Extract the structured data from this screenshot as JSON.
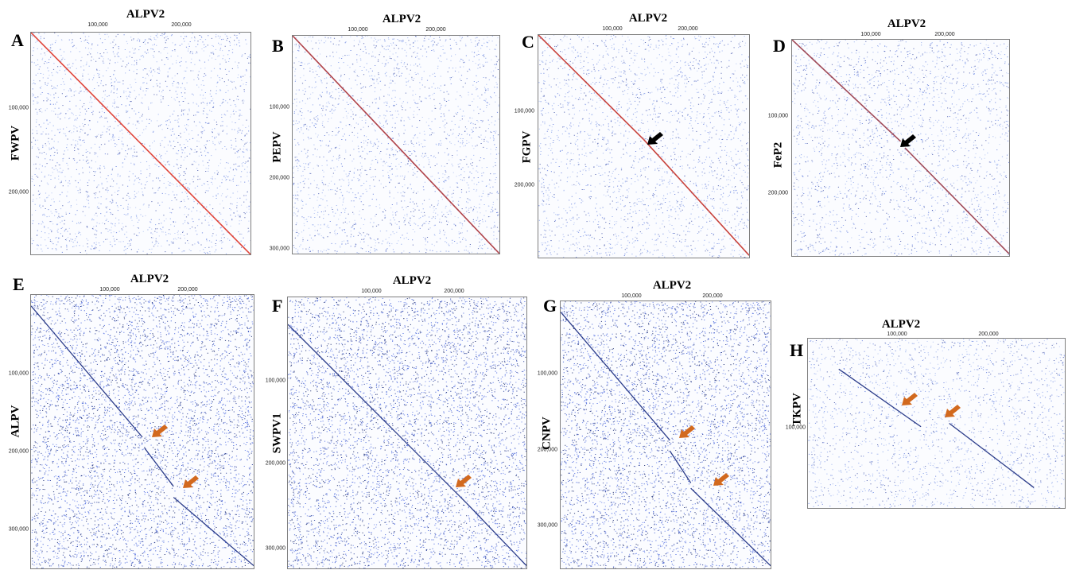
{
  "chart_data": [
    {
      "panel": "A",
      "type": "scatter",
      "title": "ALPV2",
      "xlabel": "ALPV2",
      "ylabel": "FWPV",
      "x_ticks": [
        "100,000",
        "200,000"
      ],
      "y_ticks": [
        "100,000",
        "200,000"
      ],
      "diagonal_color": "#e0453a",
      "noise_density": "sparse",
      "arrows": []
    },
    {
      "panel": "B",
      "type": "scatter",
      "title": "ALPV2",
      "xlabel": "ALPV2",
      "ylabel": "PEPV",
      "x_ticks": [
        "100,000",
        "200,000"
      ],
      "y_ticks": [
        "100,000",
        "200,000",
        "300,000"
      ],
      "diagonal_color": "#b0434a",
      "noise_density": "sparse",
      "arrows": []
    },
    {
      "panel": "C",
      "type": "scatter",
      "title": "ALPV2",
      "xlabel": "ALPV2",
      "ylabel": "FGPV",
      "x_ticks": [
        "100,000",
        "200,000"
      ],
      "y_ticks": [
        "100,000",
        "200,000"
      ],
      "diagonal_color": "#c8423c",
      "noise_density": "sparse",
      "arrows": [
        {
          "color": "#000000",
          "direction": "down-left"
        }
      ]
    },
    {
      "panel": "D",
      "type": "scatter",
      "title": "ALPV2",
      "xlabel": "ALPV2",
      "ylabel": "FeP2",
      "x_ticks": [
        "100,000",
        "200,000"
      ],
      "y_ticks": [
        "100,000",
        "200,000"
      ],
      "diagonal_color": "#a04a58",
      "noise_density": "sparse",
      "arrows": [
        {
          "color": "#000000",
          "direction": "down-left"
        }
      ]
    },
    {
      "panel": "E",
      "type": "scatter",
      "title": "ALPV2",
      "xlabel": "ALPV2",
      "ylabel": "ALPV",
      "x_ticks": [
        "100,000",
        "200,000"
      ],
      "y_ticks": [
        "100,000",
        "200,000",
        "300,000"
      ],
      "diagonal_color": "#2b3c8a",
      "noise_density": "dense",
      "arrows": [
        {
          "color": "#d2691e",
          "direction": "down-left"
        },
        {
          "color": "#d2691e",
          "direction": "down-left"
        }
      ]
    },
    {
      "panel": "F",
      "type": "scatter",
      "title": "ALPV2",
      "xlabel": "ALPV2",
      "ylabel": "SWPV1",
      "x_ticks": [
        "100,000",
        "200,000"
      ],
      "y_ticks": [
        "100,000",
        "200,000",
        "300,000"
      ],
      "diagonal_color": "#2b3c8a",
      "noise_density": "dense",
      "arrows": [
        {
          "color": "#d2691e",
          "direction": "down-left"
        }
      ]
    },
    {
      "panel": "G",
      "type": "scatter",
      "title": "ALPV2",
      "xlabel": "ALPV2",
      "ylabel": "CNPV",
      "x_ticks": [
        "100,000",
        "200,000"
      ],
      "y_ticks": [
        "100,000",
        "200,000",
        "300,000"
      ],
      "diagonal_color": "#2b3c8a",
      "noise_density": "dense",
      "arrows": [
        {
          "color": "#d2691e",
          "direction": "down-left"
        },
        {
          "color": "#d2691e",
          "direction": "down-left"
        }
      ]
    },
    {
      "panel": "H",
      "type": "scatter",
      "title": "ALPV2",
      "xlabel": "ALPV2",
      "ylabel": "TKPV",
      "x_ticks": [
        "100,000",
        "200,000"
      ],
      "y_ticks": [
        "100,000"
      ],
      "diagonal_color": "#2b3c8a",
      "noise_density": "sparse",
      "arrows": [
        {
          "color": "#d2691e",
          "direction": "down-left"
        },
        {
          "color": "#d2691e",
          "direction": "down-left"
        }
      ]
    }
  ]
}
